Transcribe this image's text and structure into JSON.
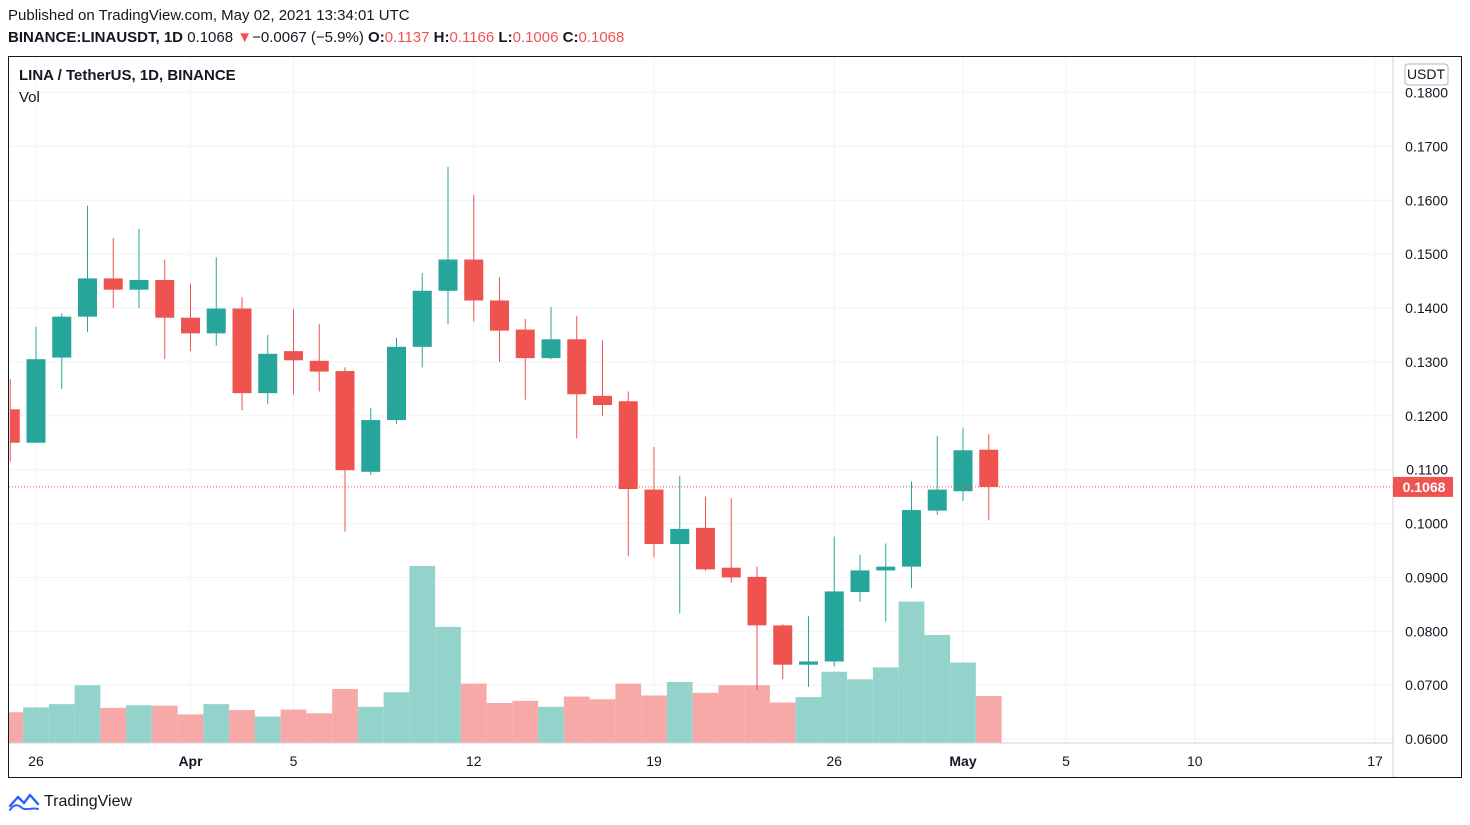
{
  "header": {
    "published": "Published on TradingView.com, May 02, 2021 13:34:01 UTC",
    "symbol": "BINANCE:LINAUSDT, 1D",
    "last": "0.1068",
    "arrow": "▼",
    "change": "−0.0067 (−5.9%)",
    "o_label": "O:",
    "o_value": "0.1137",
    "h_label": "H:",
    "h_value": "0.1166",
    "l_label": "L:",
    "l_value": "0.1006",
    "c_label": "C:",
    "c_value": "0.1068"
  },
  "legend": {
    "title": "LINA / TetherUS, 1D, BINANCE",
    "volume": "Vol"
  },
  "axis": {
    "currency": "USDT",
    "price_label": "0.1068"
  },
  "footer": {
    "brand": "TradingView"
  },
  "colors": {
    "up": "#26a69a",
    "down": "#ef5350",
    "up_vol": "#94d3cc",
    "down_vol": "#f7a9a7",
    "grid": "#f0f3fa",
    "price_line": "#ef5350"
  },
  "chart_data": {
    "type": "candlestick",
    "title": "LINA / TetherUS, 1D, BINANCE",
    "ylim": [
      0.058,
      0.185
    ],
    "y_ticks": [
      0.18,
      0.17,
      0.16,
      0.15,
      0.14,
      0.13,
      0.12,
      0.11,
      0.1,
      0.09,
      0.08,
      0.07,
      0.06
    ],
    "x_ticks": [
      {
        "label": "26",
        "day": 0
      },
      {
        "label": "Apr",
        "day": 6
      },
      {
        "label": "5",
        "day": 10
      },
      {
        "label": "12",
        "day": 17
      },
      {
        "label": "19",
        "day": 24
      },
      {
        "label": "26",
        "day": 31
      },
      {
        "label": "May",
        "day": 36
      },
      {
        "label": "5",
        "day": 40
      },
      {
        "label": "10",
        "day": 45
      },
      {
        "label": "17",
        "day": 52
      }
    ],
    "last_price": 0.1068,
    "candles": [
      {
        "day": -1,
        "o": 0.1212,
        "h": 0.1268,
        "l": 0.1115,
        "c": 0.115,
        "vol": 0.0637
      },
      {
        "day": 0,
        "o": 0.115,
        "h": 0.1365,
        "l": 0.115,
        "c": 0.1305,
        "vol": 0.0646
      },
      {
        "day": 1,
        "o": 0.1308,
        "h": 0.139,
        "l": 0.125,
        "c": 0.1384,
        "vol": 0.0652
      },
      {
        "day": 2,
        "o": 0.1384,
        "h": 0.159,
        "l": 0.1355,
        "c": 0.1455,
        "vol": 0.0687
      },
      {
        "day": 3,
        "o": 0.1455,
        "h": 0.153,
        "l": 0.14,
        "c": 0.1434,
        "vol": 0.0645
      },
      {
        "day": 4,
        "o": 0.1434,
        "h": 0.1547,
        "l": 0.14,
        "c": 0.1452,
        "vol": 0.065
      },
      {
        "day": 5,
        "o": 0.1452,
        "h": 0.149,
        "l": 0.1305,
        "c": 0.1382,
        "vol": 0.0649
      },
      {
        "day": 6,
        "o": 0.1382,
        "h": 0.1445,
        "l": 0.132,
        "c": 0.1353,
        "vol": 0.0633
      },
      {
        "day": 7,
        "o": 0.1353,
        "h": 0.1494,
        "l": 0.133,
        "c": 0.1399,
        "vol": 0.0652
      },
      {
        "day": 8,
        "o": 0.1399,
        "h": 0.142,
        "l": 0.121,
        "c": 0.1242,
        "vol": 0.0641
      },
      {
        "day": 9,
        "o": 0.1242,
        "h": 0.135,
        "l": 0.1222,
        "c": 0.1315,
        "vol": 0.0629
      },
      {
        "day": 10,
        "o": 0.132,
        "h": 0.1398,
        "l": 0.124,
        "c": 0.1303,
        "vol": 0.0642
      },
      {
        "day": 11,
        "o": 0.1302,
        "h": 0.137,
        "l": 0.1245,
        "c": 0.1282,
        "vol": 0.0635
      },
      {
        "day": 12,
        "o": 0.1283,
        "h": 0.129,
        "l": 0.0985,
        "c": 0.1099,
        "vol": 0.068
      },
      {
        "day": 13,
        "o": 0.1096,
        "h": 0.1215,
        "l": 0.109,
        "c": 0.1192,
        "vol": 0.0647
      },
      {
        "day": 14,
        "o": 0.1192,
        "h": 0.1345,
        "l": 0.1185,
        "c": 0.1328,
        "vol": 0.0674
      },
      {
        "day": 15,
        "o": 0.1328,
        "h": 0.1465,
        "l": 0.129,
        "c": 0.1432,
        "vol": 0.0908
      },
      {
        "day": 16,
        "o": 0.1432,
        "h": 0.1662,
        "l": 0.137,
        "c": 0.149,
        "vol": 0.0795
      },
      {
        "day": 17,
        "o": 0.149,
        "h": 0.161,
        "l": 0.1375,
        "c": 0.1414,
        "vol": 0.069
      },
      {
        "day": 18,
        "o": 0.1414,
        "h": 0.1457,
        "l": 0.13,
        "c": 0.1358,
        "vol": 0.0654
      },
      {
        "day": 19,
        "o": 0.136,
        "h": 0.138,
        "l": 0.123,
        "c": 0.1307,
        "vol": 0.0658
      },
      {
        "day": 20,
        "o": 0.1307,
        "h": 0.1402,
        "l": 0.1305,
        "c": 0.1342,
        "vol": 0.0647
      },
      {
        "day": 21,
        "o": 0.1342,
        "h": 0.1385,
        "l": 0.1158,
        "c": 0.124,
        "vol": 0.0666
      },
      {
        "day": 22,
        "o": 0.1237,
        "h": 0.134,
        "l": 0.12,
        "c": 0.122,
        "vol": 0.0661
      },
      {
        "day": 23,
        "o": 0.1227,
        "h": 0.1245,
        "l": 0.094,
        "c": 0.1064,
        "vol": 0.069
      },
      {
        "day": 24,
        "o": 0.1063,
        "h": 0.1142,
        "l": 0.0937,
        "c": 0.0962,
        "vol": 0.0668
      },
      {
        "day": 25,
        "o": 0.0962,
        "h": 0.1088,
        "l": 0.0833,
        "c": 0.099,
        "vol": 0.0693
      },
      {
        "day": 26,
        "o": 0.0992,
        "h": 0.105,
        "l": 0.0912,
        "c": 0.0915,
        "vol": 0.0673
      },
      {
        "day": 27,
        "o": 0.0918,
        "h": 0.1047,
        "l": 0.089,
        "c": 0.09,
        "vol": 0.0687
      },
      {
        "day": 28,
        "o": 0.0901,
        "h": 0.092,
        "l": 0.0691,
        "c": 0.0811,
        "vol": 0.0687
      },
      {
        "day": 29,
        "o": 0.0811,
        "h": 0.0813,
        "l": 0.0711,
        "c": 0.0738,
        "vol": 0.0655
      },
      {
        "day": 30,
        "o": 0.0738,
        "h": 0.0828,
        "l": 0.0697,
        "c": 0.0744,
        "vol": 0.0665
      },
      {
        "day": 31,
        "o": 0.0744,
        "h": 0.0976,
        "l": 0.0735,
        "c": 0.0874,
        "vol": 0.0712
      },
      {
        "day": 32,
        "o": 0.0873,
        "h": 0.0942,
        "l": 0.0855,
        "c": 0.0913,
        "vol": 0.0698
      },
      {
        "day": 33,
        "o": 0.0913,
        "h": 0.0963,
        "l": 0.0818,
        "c": 0.092,
        "vol": 0.072
      },
      {
        "day": 34,
        "o": 0.092,
        "h": 0.1078,
        "l": 0.088,
        "c": 0.1025,
        "vol": 0.0842
      },
      {
        "day": 35,
        "o": 0.1024,
        "h": 0.1162,
        "l": 0.1016,
        "c": 0.1063,
        "vol": 0.078
      },
      {
        "day": 36,
        "o": 0.106,
        "h": 0.1178,
        "l": 0.1042,
        "c": 0.1136,
        "vol": 0.0729
      },
      {
        "day": 37,
        "o": 0.1137,
        "h": 0.1166,
        "l": 0.1006,
        "c": 0.1068,
        "vol": 0.0667
      }
    ]
  }
}
